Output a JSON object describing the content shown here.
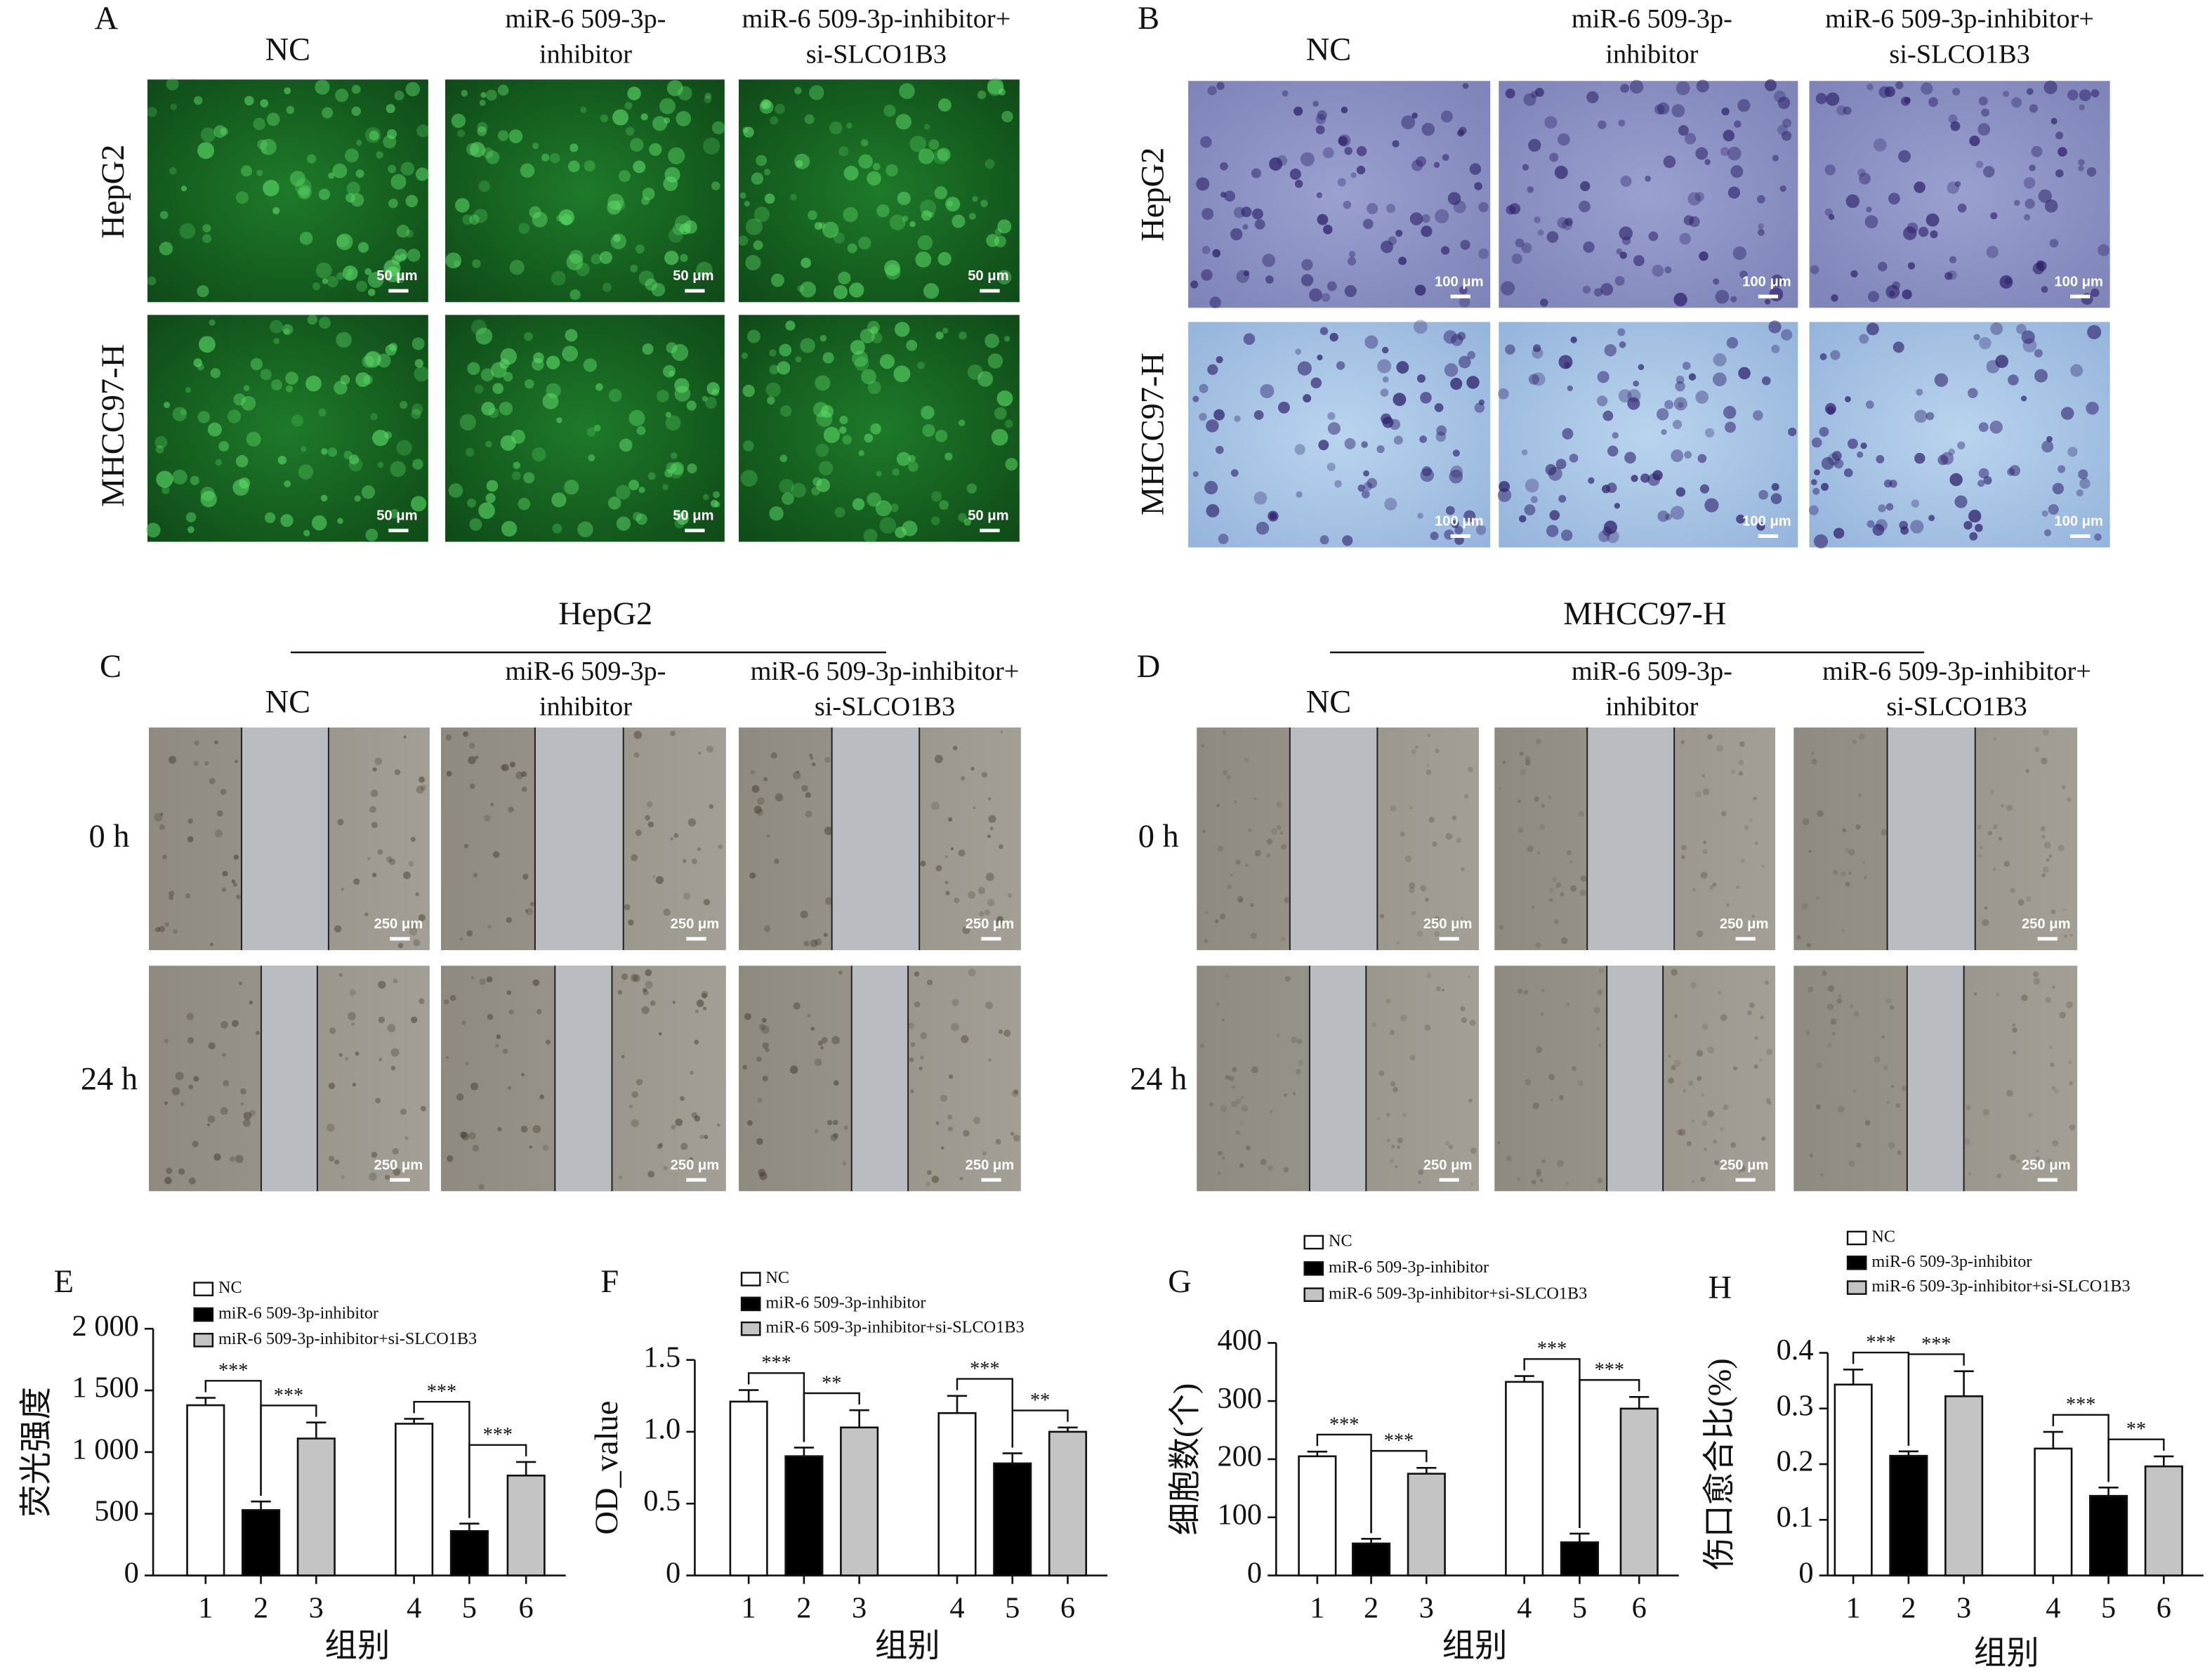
{
  "panels": [
    {
      "letter": "A",
      "columns": [
        [
          "NC"
        ],
        [
          "miR-6 509-3p-",
          "inhibitor"
        ],
        [
          "miR-6 509-3p-inhibitor+",
          "si-SLCO1B3"
        ]
      ],
      "rows": [
        "HepG2",
        "MHCC97-H"
      ],
      "scale_bar": "50 μm"
    },
    {
      "letter": "B",
      "columns": [
        [
          "NC"
        ],
        [
          "miR-6 509-3p-",
          "inhibitor"
        ],
        [
          "miR-6 509-3p-inhibitor+",
          "si-SLCO1B3"
        ]
      ],
      "rows": [
        "HepG2",
        "MHCC97-H"
      ],
      "scale_bar": "100 μm"
    },
    {
      "letter": "C",
      "group_title": "HepG2",
      "columns": [
        [
          "NC"
        ],
        [
          "miR-6 509-3p-",
          "inhibitor"
        ],
        [
          "miR-6 509-3p-inhibitor+",
          "si-SLCO1B3"
        ]
      ],
      "rows": [
        "0 h",
        "24 h"
      ],
      "scale_bar": "250 μm"
    },
    {
      "letter": "D",
      "group_title": "MHCC97-H",
      "columns": [
        [
          "NC"
        ],
        [
          "miR-6 509-3p-",
          "inhibitor"
        ],
        [
          "miR-6 509-3p-inhibitor+",
          "si-SLCO1B3"
        ]
      ],
      "rows": [
        "0 h",
        "24 h"
      ],
      "scale_bar": "250 μm"
    }
  ],
  "chart_data": [
    {
      "type": "bar",
      "title": "E",
      "y_label": "荧光强度",
      "x_label": "组别",
      "categories": [
        "1",
        "2",
        "3",
        "4",
        "5",
        "6"
      ],
      "ylim": [
        0,
        2000
      ],
      "yticks": [
        0,
        500,
        {
          "value": 1000,
          "label": "1 000"
        },
        {
          "value": 1500,
          "label": "1 500"
        },
        {
          "value": 2000,
          "label": "2 000"
        }
      ],
      "series": [
        {
          "name": "NC",
          "color": "#ffffff",
          "values": [
            1380,
            null,
            null,
            1230,
            null,
            null
          ],
          "errors": [
            60,
            null,
            null,
            40,
            null,
            null
          ]
        },
        {
          "name": "miR-6 509-3p-inhibitor",
          "color": "#000000",
          "values": [
            null,
            530,
            null,
            null,
            360,
            null
          ],
          "errors": [
            null,
            70,
            null,
            null,
            60,
            null
          ]
        },
        {
          "name": "miR-6 509-3p-inhibitor+si-SLCO1B3",
          "color": "#c4c4c4",
          "values": [
            null,
            null,
            1110,
            null,
            null,
            810
          ],
          "errors": [
            null,
            null,
            130,
            null,
            null,
            110
          ]
        }
      ],
      "annotations": [
        {
          "label": "***",
          "between": [
            "1",
            "2"
          ]
        },
        {
          "label": "***",
          "between": [
            "2",
            "3"
          ]
        },
        {
          "label": "***",
          "between": [
            "4",
            "5"
          ]
        },
        {
          "label": "***",
          "between": [
            "5",
            "6"
          ]
        }
      ]
    },
    {
      "type": "bar",
      "title": "F",
      "y_label": "OD_value",
      "x_label": "组别",
      "categories": [
        "1",
        "2",
        "3",
        "4",
        "5",
        "6"
      ],
      "ylim": [
        0,
        1.5
      ],
      "yticks": [
        0,
        0.5,
        {
          "value": 1,
          "label": "1.0"
        },
        1.5
      ],
      "series": [
        {
          "name": "NC",
          "color": "#ffffff",
          "values": [
            1.21,
            null,
            null,
            1.13,
            null,
            null
          ],
          "errors": [
            0.08,
            null,
            null,
            0.12,
            null,
            null
          ]
        },
        {
          "name": "miR-6 509-3p-inhibitor",
          "color": "#000000",
          "values": [
            null,
            0.83,
            null,
            null,
            0.78,
            null
          ],
          "errors": [
            null,
            0.06,
            null,
            null,
            0.07,
            null
          ]
        },
        {
          "name": "miR-6 509-3p-inhibitor+si-SLCO1B3",
          "color": "#c4c4c4",
          "values": [
            null,
            null,
            1.03,
            null,
            null,
            1.0
          ],
          "errors": [
            null,
            null,
            0.12,
            null,
            null,
            0.03
          ]
        }
      ],
      "annotations": [
        {
          "label": "***",
          "between": [
            "1",
            "2"
          ]
        },
        {
          "label": "**",
          "between": [
            "2",
            "3"
          ]
        },
        {
          "label": "***",
          "between": [
            "4",
            "5"
          ]
        },
        {
          "label": "**",
          "between": [
            "5",
            "6"
          ]
        }
      ]
    },
    {
      "type": "bar",
      "title": "G",
      "y_label": "细胞数(个)",
      "x_label": "组别",
      "categories": [
        "1",
        "2",
        "3",
        "4",
        "5",
        "6"
      ],
      "ylim": [
        0,
        400
      ],
      "yticks": [
        0,
        100,
        200,
        300,
        400
      ],
      "series": [
        {
          "name": "NC",
          "color": "#ffffff",
          "values": [
            205,
            null,
            null,
            333,
            null,
            null
          ],
          "errors": [
            8,
            null,
            null,
            10,
            null,
            null
          ]
        },
        {
          "name": "miR-6 509-3p-inhibitor",
          "color": "#000000",
          "values": [
            null,
            55,
            null,
            null,
            57,
            null
          ],
          "errors": [
            null,
            8,
            null,
            null,
            15,
            null
          ]
        },
        {
          "name": "miR-6 509-3p-inhibitor+si-SLCO1B3",
          "color": "#c4c4c4",
          "values": [
            null,
            null,
            175,
            null,
            null,
            287
          ],
          "errors": [
            null,
            null,
            10,
            null,
            null,
            20
          ]
        }
      ],
      "annotations": [
        {
          "label": "***",
          "between": [
            "1",
            "2"
          ]
        },
        {
          "label": "***",
          "between": [
            "2",
            "3"
          ]
        },
        {
          "label": "***",
          "between": [
            "4",
            "5"
          ]
        },
        {
          "label": "***",
          "between": [
            "5",
            "6"
          ]
        }
      ]
    },
    {
      "type": "bar",
      "title": "H",
      "y_label": "伤口愈合比(%)",
      "x_label": "组别",
      "categories": [
        "1",
        "2",
        "3",
        "4",
        "5",
        "6"
      ],
      "ylim": [
        0,
        0.4
      ],
      "yticks": [
        0,
        0.1,
        0.2,
        0.3,
        0.4
      ],
      "series": [
        {
          "name": "NC",
          "color": "#ffffff",
          "values": [
            0.343,
            null,
            null,
            0.228,
            null,
            null
          ],
          "errors": [
            0.027,
            null,
            null,
            0.03,
            null,
            null
          ]
        },
        {
          "name": "miR-6 509-3p-inhibitor",
          "color": "#000000",
          "values": [
            null,
            0.215,
            null,
            null,
            0.143,
            null
          ],
          "errors": [
            null,
            0.008,
            null,
            null,
            0.015,
            null
          ]
        },
        {
          "name": "miR-6 509-3p-inhibitor+si-SLCO1B3",
          "color": "#c4c4c4",
          "values": [
            null,
            null,
            0.322,
            null,
            null,
            0.196
          ],
          "errors": [
            null,
            null,
            0.045,
            null,
            null,
            0.018
          ]
        }
      ],
      "annotations": [
        {
          "label": "***",
          "between": [
            "1",
            "2"
          ]
        },
        {
          "label": "***",
          "between": [
            "2",
            "3"
          ]
        },
        {
          "label": "***",
          "between": [
            "4",
            "5"
          ]
        },
        {
          "label": "**",
          "between": [
            "5",
            "6"
          ]
        }
      ]
    }
  ]
}
